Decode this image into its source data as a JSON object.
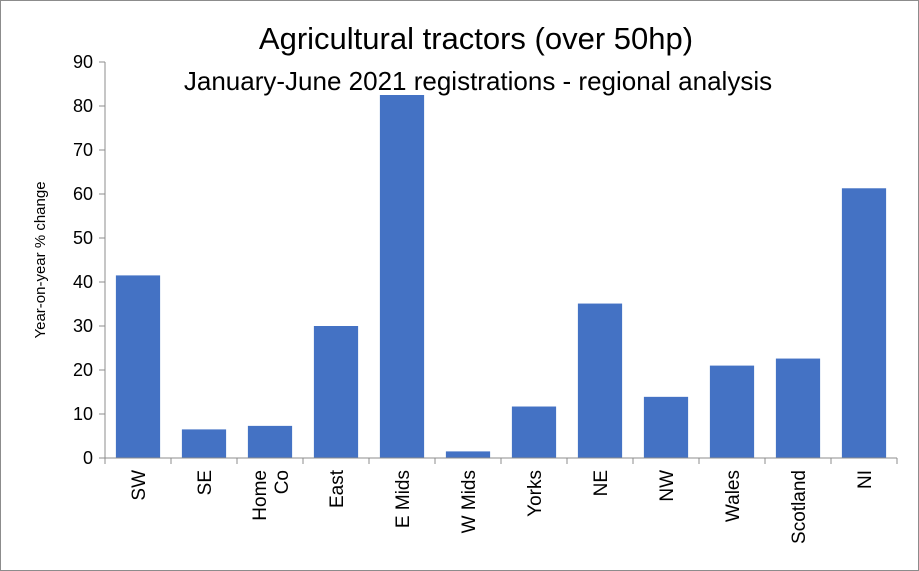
{
  "chart_data": {
    "type": "bar",
    "title": "Agricultural tractors (over 50hp)",
    "subtitle": "January-June 2021 registrations - regional analysis",
    "ylabel": "Year-on-year  % change",
    "xlabel": "",
    "ylim": [
      0,
      90
    ],
    "yticks": [
      0,
      10,
      20,
      30,
      40,
      50,
      60,
      70,
      80,
      90
    ],
    "categories": [
      [
        "SW"
      ],
      [
        "SE"
      ],
      [
        "Home",
        "Co"
      ],
      [
        "East"
      ],
      [
        "E Mids"
      ],
      [
        "W Mids"
      ],
      [
        "Yorks"
      ],
      [
        "NE"
      ],
      [
        "NW"
      ],
      [
        "Wales"
      ],
      [
        "Scotland"
      ],
      [
        "NI"
      ]
    ],
    "values": [
      41.5,
      6.5,
      7.3,
      30.0,
      82.5,
      1.5,
      11.7,
      35.1,
      13.9,
      21.0,
      22.6,
      61.3
    ],
    "bar_color": "#4472C4",
    "grid": false,
    "legend": "none"
  }
}
